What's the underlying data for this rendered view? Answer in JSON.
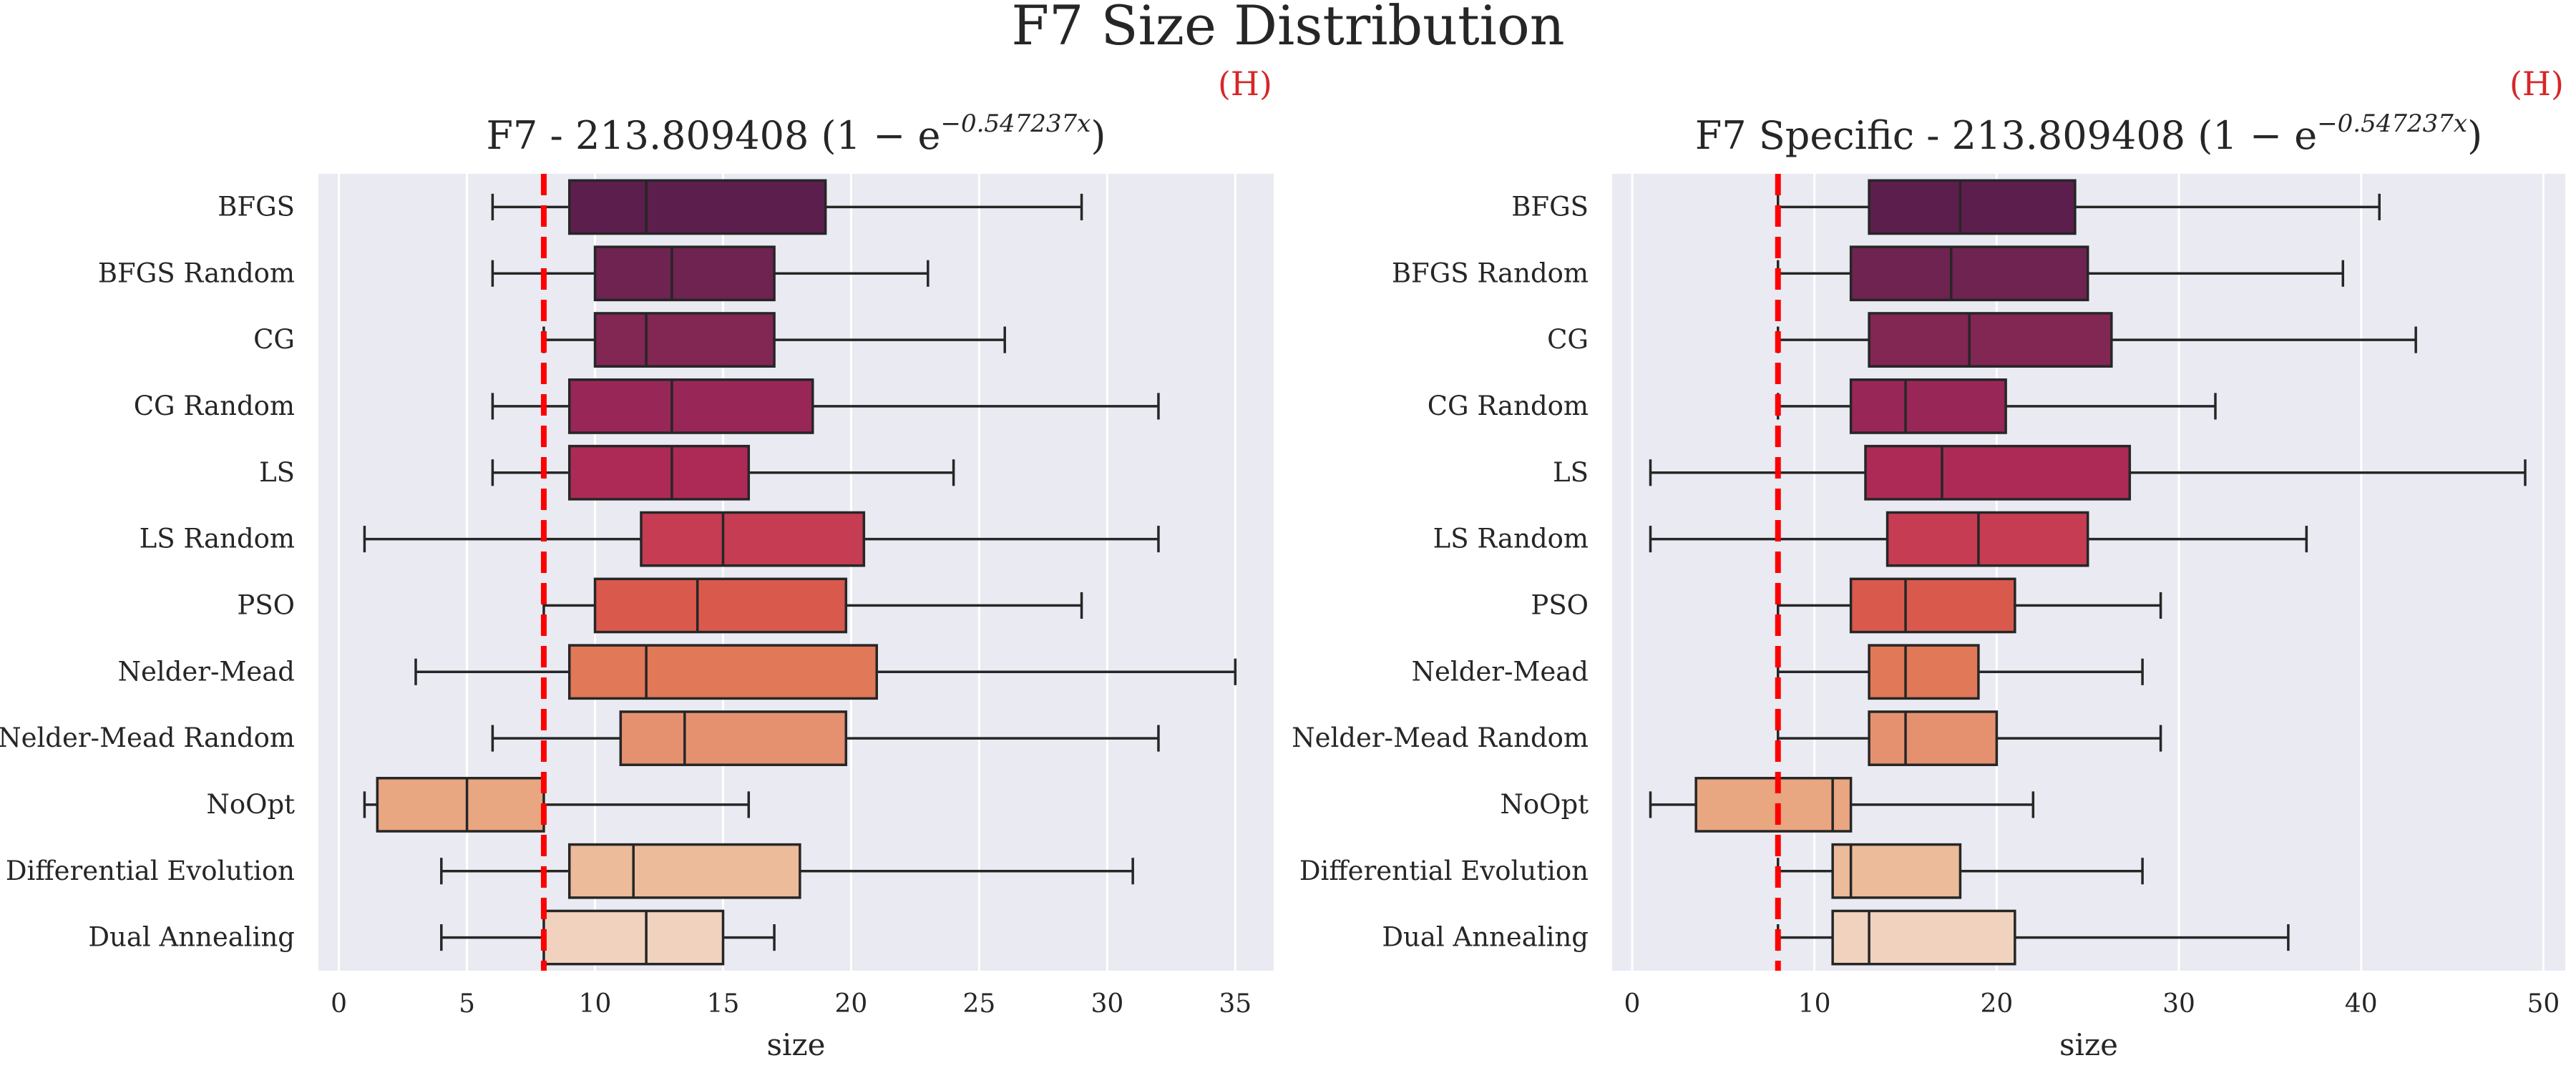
{
  "suptitle": "F7 Size Distribution",
  "ref_marker": "(H)",
  "colors": {
    "panel_bg": "#eaeaf2",
    "grid": "#ffffff",
    "ref_line": "#ff0000",
    "marker": "#d62728",
    "palette": [
      "#5c1e4c",
      "#6e2350",
      "#822654",
      "#982758",
      "#ad2a56",
      "#c53c53",
      "#d95a4d",
      "#e17858",
      "#e59170",
      "#e8a681",
      "#ebbb9a",
      "#f0d2bf"
    ]
  },
  "chart_data": [
    {
      "type": "box",
      "orientation": "horizontal",
      "title_prefix": "F7 - 213.809408",
      "title_formula": "(1 − e",
      "title_exponent": "−0.547237x",
      "title_suffix": ")",
      "xlabel": "size",
      "xlim": [
        -0.8,
        36.5
      ],
      "xticks": [
        0,
        5,
        10,
        15,
        20,
        25,
        30,
        35
      ],
      "reference_line": 8,
      "grid": true,
      "categories": [
        "BFGS",
        "BFGS Random",
        "CG",
        "CG Random",
        "LS",
        "LS Random",
        "PSO",
        "Nelder-Mead",
        "Nelder-Mead Random",
        "NoOpt",
        "Differential Evolution",
        "Dual Annealing"
      ],
      "boxes": [
        {
          "min": 6,
          "q1": 9,
          "median": 12,
          "q3": 19,
          "max": 29
        },
        {
          "min": 6,
          "q1": 10,
          "median": 13,
          "q3": 17,
          "max": 23
        },
        {
          "min": 8,
          "q1": 10,
          "median": 12,
          "q3": 17,
          "max": 26
        },
        {
          "min": 6,
          "q1": 9,
          "median": 13,
          "q3": 18.5,
          "max": 32
        },
        {
          "min": 6,
          "q1": 9,
          "median": 13,
          "q3": 16,
          "max": 24
        },
        {
          "min": 1,
          "q1": 11.8,
          "median": 15,
          "q3": 20.5,
          "max": 32
        },
        {
          "min": 8,
          "q1": 10,
          "median": 14,
          "q3": 19.8,
          "max": 29
        },
        {
          "min": 3,
          "q1": 9,
          "median": 12,
          "q3": 21,
          "max": 35
        },
        {
          "min": 6,
          "q1": 11,
          "median": 13.5,
          "q3": 19.8,
          "max": 32
        },
        {
          "min": 1,
          "q1": 1.5,
          "median": 5,
          "q3": 8,
          "max": 16
        },
        {
          "min": 4,
          "q1": 9,
          "median": 11.5,
          "q3": 18,
          "max": 31
        },
        {
          "min": 4,
          "q1": 8,
          "median": 12,
          "q3": 15,
          "max": 17
        }
      ]
    },
    {
      "type": "box",
      "orientation": "horizontal",
      "title_prefix": "F7 Specific - 213.809408",
      "title_formula": "(1 − e",
      "title_exponent": "−0.547237x",
      "title_suffix": ")",
      "xlabel": "size",
      "xlim": [
        -1.1,
        51.2
      ],
      "xticks": [
        0,
        10,
        20,
        30,
        40,
        50
      ],
      "reference_line": 8,
      "grid": true,
      "categories": [
        "BFGS",
        "BFGS Random",
        "CG",
        "CG Random",
        "LS",
        "LS Random",
        "PSO",
        "Nelder-Mead",
        "Nelder-Mead Random",
        "NoOpt",
        "Differential Evolution",
        "Dual Annealing"
      ],
      "boxes": [
        {
          "min": 8,
          "q1": 13,
          "median": 18,
          "q3": 24.3,
          "max": 41
        },
        {
          "min": 8,
          "q1": 12,
          "median": 17.5,
          "q3": 25,
          "max": 39
        },
        {
          "min": 8,
          "q1": 13,
          "median": 18.5,
          "q3": 26.3,
          "max": 43
        },
        {
          "min": 8,
          "q1": 12,
          "median": 15,
          "q3": 20.5,
          "max": 32
        },
        {
          "min": 1,
          "q1": 12.8,
          "median": 17,
          "q3": 27.3,
          "max": 49
        },
        {
          "min": 1,
          "q1": 14,
          "median": 19,
          "q3": 25,
          "max": 37
        },
        {
          "min": 8,
          "q1": 12,
          "median": 15,
          "q3": 21,
          "max": 29
        },
        {
          "min": 8,
          "q1": 13,
          "median": 15,
          "q3": 19,
          "max": 28
        },
        {
          "min": 8,
          "q1": 13,
          "median": 15,
          "q3": 20,
          "max": 29
        },
        {
          "min": 1,
          "q1": 3.5,
          "median": 11,
          "q3": 12,
          "max": 22
        },
        {
          "min": 8,
          "q1": 11,
          "median": 12,
          "q3": 18,
          "max": 28
        },
        {
          "min": 8,
          "q1": 11,
          "median": 13,
          "q3": 21,
          "max": 36
        }
      ]
    }
  ]
}
